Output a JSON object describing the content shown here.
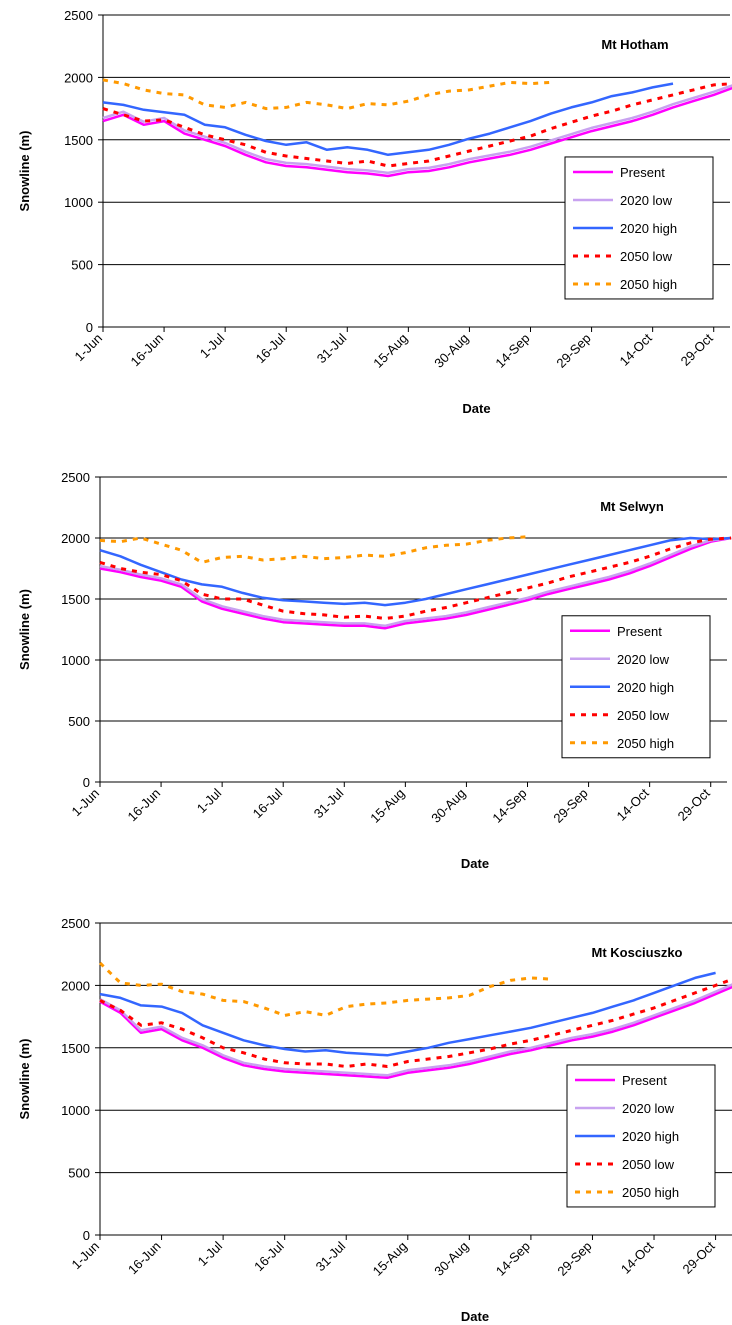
{
  "chart_data": [
    {
      "type": "line",
      "title": "Mt Hotham",
      "xlabel": "Date",
      "ylabel": "Snowline (m)",
      "categories": [
        "1-Jun",
        null,
        null,
        "16-Jun",
        null,
        null,
        "1-Jul",
        null,
        null,
        "16-Jul",
        null,
        null,
        "31-Jul",
        null,
        null,
        "15-Aug",
        null,
        null,
        "30-Aug",
        null,
        null,
        "14-Sep",
        null,
        null,
        "29-Sep",
        null,
        null,
        "14-Oct",
        null,
        null,
        "29-Oct",
        null
      ],
      "ylim": [
        0,
        2500
      ],
      "yticks": [
        0,
        500,
        1000,
        1500,
        2000,
        2500
      ],
      "grid": true,
      "legend": "right",
      "series": [
        {
          "name": "Present",
          "color": "#ff00ff",
          "dashed": false,
          "values": [
            1650,
            1700,
            1620,
            1650,
            1550,
            1500,
            1450,
            1380,
            1320,
            1290,
            1280,
            1260,
            1240,
            1230,
            1210,
            1240,
            1250,
            1280,
            1320,
            1350,
            1380,
            1420,
            1470,
            1520,
            1570,
            1610,
            1650,
            1700,
            1760,
            1810,
            1860,
            1920
          ]
        },
        {
          "name": "2020 low",
          "color": "#c8a2f0",
          "dashed": false,
          "values": [
            1675,
            1725,
            1645,
            1675,
            1575,
            1525,
            1475,
            1405,
            1345,
            1315,
            1305,
            1285,
            1265,
            1255,
            1235,
            1265,
            1275,
            1305,
            1345,
            1375,
            1405,
            1445,
            1495,
            1545,
            1595,
            1635,
            1675,
            1725,
            1785,
            1835,
            1885,
            1940
          ]
        },
        {
          "name": "2020 high",
          "color": "#3366ff",
          "dashed": false,
          "values": [
            1800,
            1780,
            1740,
            1720,
            1700,
            1620,
            1600,
            1540,
            1490,
            1460,
            1480,
            1420,
            1440,
            1420,
            1380,
            1400,
            1420,
            1460,
            1510,
            1550,
            1600,
            1650,
            1710,
            1760,
            1800,
            1850,
            1880,
            1920,
            1950,
            null,
            null,
            null
          ]
        },
        {
          "name": "2050 low",
          "color": "#ff0000",
          "dashed": true,
          "values": [
            1750,
            1700,
            1650,
            1660,
            1600,
            1540,
            1500,
            1460,
            1400,
            1370,
            1350,
            1330,
            1310,
            1330,
            1290,
            1310,
            1330,
            1370,
            1410,
            1450,
            1490,
            1530,
            1590,
            1640,
            1690,
            1730,
            1780,
            1820,
            1860,
            1900,
            1940,
            1950
          ]
        },
        {
          "name": "2050 high",
          "color": "#ff9900",
          "dashed": true,
          "values": [
            1980,
            1950,
            1900,
            1870,
            1860,
            1780,
            1760,
            1800,
            1750,
            1760,
            1800,
            1780,
            1750,
            1790,
            1780,
            1810,
            1860,
            1890,
            1900,
            1930,
            1960,
            1950,
            1960,
            null,
            null,
            null,
            null,
            null,
            null,
            null,
            null,
            null
          ]
        }
      ]
    },
    {
      "type": "line",
      "title": "Mt Selwyn",
      "xlabel": "Date",
      "ylabel": "Snowline (m)",
      "categories": [
        "1-Jun",
        null,
        null,
        "16-Jun",
        null,
        null,
        "1-Jul",
        null,
        null,
        "16-Jul",
        null,
        null,
        "31-Jul",
        null,
        null,
        "15-Aug",
        null,
        null,
        "30-Aug",
        null,
        null,
        "14-Sep",
        null,
        null,
        "29-Sep",
        null,
        null,
        "14-Oct",
        null,
        null,
        "29-Oct",
        null
      ],
      "ylim": [
        0,
        2500
      ],
      "yticks": [
        0,
        500,
        1000,
        1500,
        2000,
        2500
      ],
      "grid": true,
      "legend": "right",
      "series": [
        {
          "name": "Present",
          "color": "#ff00ff",
          "dashed": false,
          "values": [
            1750,
            1720,
            1680,
            1650,
            1600,
            1480,
            1420,
            1380,
            1340,
            1310,
            1300,
            1290,
            1280,
            1280,
            1260,
            1300,
            1320,
            1340,
            1370,
            1410,
            1450,
            1490,
            1540,
            1580,
            1620,
            1660,
            1710,
            1770,
            1840,
            1910,
            1970,
            2000
          ]
        },
        {
          "name": "2020 low",
          "color": "#c8a2f0",
          "dashed": false,
          "values": [
            1770,
            1740,
            1700,
            1670,
            1620,
            1500,
            1440,
            1400,
            1360,
            1330,
            1320,
            1310,
            1300,
            1300,
            1280,
            1320,
            1340,
            1360,
            1390,
            1430,
            1470,
            1510,
            1560,
            1600,
            1640,
            1680,
            1730,
            1790,
            1860,
            1930,
            1980,
            2000
          ]
        },
        {
          "name": "2020 high",
          "color": "#3366ff",
          "dashed": false,
          "values": [
            1900,
            1850,
            1780,
            1720,
            1660,
            1620,
            1600,
            1550,
            1510,
            1490,
            1480,
            1470,
            1460,
            1470,
            1450,
            1470,
            1500,
            1540,
            1580,
            1620,
            1660,
            1700,
            1740,
            1780,
            1820,
            1860,
            1900,
            1940,
            1980,
            2000,
            1990,
            2000
          ]
        },
        {
          "name": "2050 low",
          "color": "#ff0000",
          "dashed": true,
          "values": [
            1800,
            1750,
            1720,
            1700,
            1650,
            1540,
            1500,
            1500,
            1450,
            1400,
            1380,
            1370,
            1350,
            1360,
            1340,
            1360,
            1400,
            1430,
            1470,
            1510,
            1550,
            1590,
            1630,
            1680,
            1720,
            1760,
            1800,
            1850,
            1910,
            1960,
            1990,
            2000
          ]
        },
        {
          "name": "2050 high",
          "color": "#ff9900",
          "dashed": true,
          "values": [
            1980,
            1970,
            2000,
            1950,
            1900,
            1800,
            1840,
            1850,
            1820,
            1830,
            1850,
            1830,
            1840,
            1860,
            1850,
            1880,
            1920,
            1940,
            1950,
            1980,
            2000,
            2010,
            null,
            null,
            null,
            null,
            null,
            null,
            null,
            null,
            null,
            null
          ]
        }
      ]
    },
    {
      "type": "line",
      "title": "Mt Kosciuszko",
      "xlabel": "Date",
      "ylabel": "Snowline (m)",
      "categories": [
        "1-Jun",
        null,
        null,
        "16-Jun",
        null,
        null,
        "1-Jul",
        null,
        null,
        "16-Jul",
        null,
        null,
        "31-Jul",
        null,
        null,
        "15-Aug",
        null,
        null,
        "30-Aug",
        null,
        null,
        "14-Sep",
        null,
        null,
        "29-Sep",
        null,
        null,
        "14-Oct",
        null,
        null,
        "29-Oct",
        null
      ],
      "ylim": [
        0,
        2500
      ],
      "yticks": [
        0,
        500,
        1000,
        1500,
        2000,
        2500
      ],
      "grid": true,
      "legend": "right",
      "series": [
        {
          "name": "Present",
          "color": "#ff00ff",
          "dashed": false,
          "values": [
            1870,
            1780,
            1620,
            1650,
            1560,
            1500,
            1420,
            1360,
            1330,
            1310,
            1300,
            1290,
            1280,
            1270,
            1260,
            1300,
            1320,
            1340,
            1370,
            1410,
            1450,
            1480,
            1520,
            1560,
            1590,
            1630,
            1680,
            1740,
            1800,
            1860,
            1930,
            2000
          ]
        },
        {
          "name": "2020 low",
          "color": "#c8a2f0",
          "dashed": false,
          "values": [
            1890,
            1800,
            1640,
            1670,
            1580,
            1520,
            1440,
            1380,
            1350,
            1330,
            1320,
            1310,
            1300,
            1290,
            1280,
            1320,
            1340,
            1360,
            1390,
            1430,
            1470,
            1500,
            1540,
            1580,
            1610,
            1650,
            1700,
            1760,
            1820,
            1880,
            1950,
            2020
          ]
        },
        {
          "name": "2020 high",
          "color": "#3366ff",
          "dashed": false,
          "values": [
            1930,
            1900,
            1840,
            1830,
            1780,
            1680,
            1620,
            1560,
            1520,
            1490,
            1470,
            1480,
            1460,
            1450,
            1440,
            1470,
            1500,
            1540,
            1570,
            1600,
            1630,
            1660,
            1700,
            1740,
            1780,
            1830,
            1880,
            1940,
            2000,
            2060,
            2100,
            null
          ]
        },
        {
          "name": "2050 low",
          "color": "#ff0000",
          "dashed": true,
          "values": [
            1880,
            1800,
            1680,
            1700,
            1650,
            1580,
            1500,
            1460,
            1410,
            1380,
            1370,
            1370,
            1350,
            1370,
            1350,
            1390,
            1410,
            1430,
            1460,
            1490,
            1530,
            1560,
            1600,
            1640,
            1680,
            1720,
            1770,
            1820,
            1880,
            1940,
            2000,
            2060
          ]
        },
        {
          "name": "2050 high",
          "color": "#ff9900",
          "dashed": true,
          "values": [
            2180,
            2020,
            2000,
            2010,
            1950,
            1930,
            1880,
            1870,
            1820,
            1760,
            1790,
            1760,
            1830,
            1850,
            1860,
            1880,
            1890,
            1900,
            1920,
            1990,
            2040,
            2060,
            2050,
            null,
            null,
            null,
            null,
            null,
            null,
            null,
            null,
            null
          ]
        }
      ]
    }
  ]
}
